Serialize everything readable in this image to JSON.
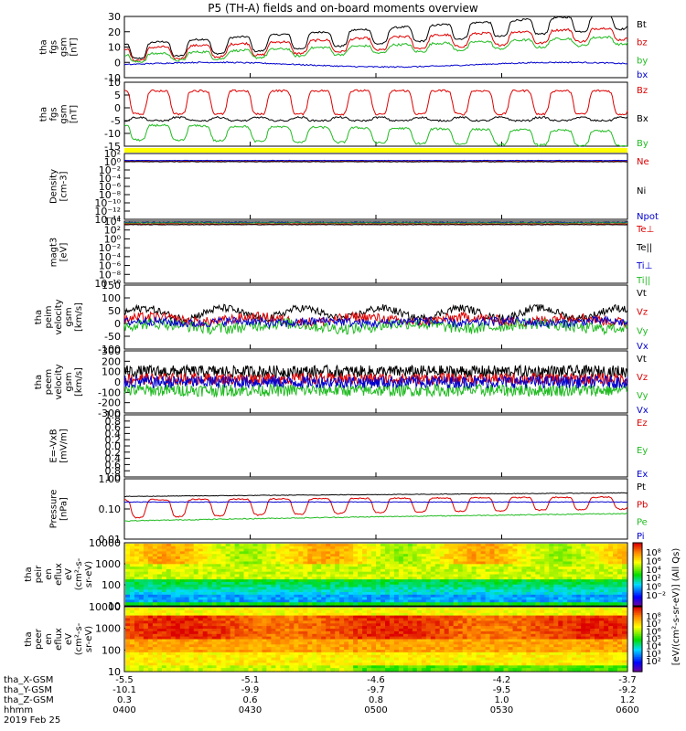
{
  "title": "P5 (TH-A) fields and on-board moments overview",
  "panels": [
    {
      "id": "fgs_gsm",
      "ylabel": [
        "tha",
        "fgs",
        "gsm",
        "[nT]"
      ],
      "yticks": [
        "30",
        "20",
        "10",
        "0",
        "-10"
      ],
      "ylim": [
        -10,
        30
      ],
      "scale": "linear",
      "legend": [
        {
          "text": "Bt",
          "color": "#000000"
        },
        {
          "text": "bz",
          "color": "#dd0000"
        },
        {
          "text": "by",
          "color": "#22bb22"
        },
        {
          "text": "bx",
          "color": "#0000cc"
        }
      ]
    },
    {
      "id": "fgs_dsl",
      "ylabel": [
        "tha",
        "fgs",
        "gsm",
        "[nT]"
      ],
      "yticks": [
        "10",
        "5",
        "0",
        "-5",
        "-10",
        "-15"
      ],
      "ylim": [
        -18,
        12
      ],
      "scale": "linear",
      "legend": [
        {
          "text": "Bz",
          "color": "#dd0000"
        },
        {
          "text": "Bx",
          "color": "#000000"
        },
        {
          "text": "By",
          "color": "#22bb22"
        }
      ]
    },
    {
      "id": "density",
      "ylabel": [
        "Density",
        "[cm-3]"
      ],
      "yticks": [
        "10²",
        "10⁰",
        "10⁻²",
        "10⁻⁴",
        "10⁻⁶",
        "10⁻⁸",
        "10⁻¹⁰",
        "10⁻¹²",
        "10⁻¹⁴"
      ],
      "ylim": [
        -14,
        2
      ],
      "scale": "log",
      "legend": [
        {
          "text": "Ne",
          "color": "#dd0000"
        },
        {
          "text": "Ni",
          "color": "#000000"
        },
        {
          "text": "Npot",
          "color": "#0000cc"
        }
      ]
    },
    {
      "id": "temp",
      "ylabel": [
        "magt3",
        "[eV]"
      ],
      "yticks": [
        "10⁴",
        "10²",
        "10⁰",
        "10⁻²",
        "10⁻⁴",
        "10⁻⁶",
        "10⁻⁸",
        "10⁻¹⁰"
      ],
      "ylim": [
        -10,
        4
      ],
      "scale": "log",
      "legend": [
        {
          "text": "Te⊥",
          "color": "#dd0000"
        },
        {
          "text": "Te||",
          "color": "#000000"
        },
        {
          "text": "Ti⊥",
          "color": "#0000cc"
        },
        {
          "text": "Ti||",
          "color": "#22bb22"
        }
      ]
    },
    {
      "id": "vi",
      "ylabel": [
        "tha",
        "peim",
        "velocity",
        "gsm",
        "[km/s]"
      ],
      "yticks": [
        "150",
        "100",
        "50",
        "0",
        "-50",
        "-100"
      ],
      "ylim": [
        -100,
        150
      ],
      "scale": "linear",
      "legend": [
        {
          "text": "Vt",
          "color": "#000000"
        },
        {
          "text": "Vz",
          "color": "#dd0000"
        },
        {
          "text": "Vy",
          "color": "#22bb22"
        },
        {
          "text": "Vx",
          "color": "#0000cc"
        }
      ]
    },
    {
      "id": "ve",
      "ylabel": [
        "tha",
        "peem",
        "velocity",
        "gsm",
        "[km/s]"
      ],
      "yticks": [
        "300",
        "200",
        "100",
        "0",
        "-100",
        "-200",
        "-300"
      ],
      "ylim": [
        -300,
        300
      ],
      "scale": "linear",
      "legend": [
        {
          "text": "Vt",
          "color": "#000000"
        },
        {
          "text": "Vz",
          "color": "#dd0000"
        },
        {
          "text": "Vy",
          "color": "#22bb22"
        },
        {
          "text": "Vx",
          "color": "#0000cc"
        }
      ]
    },
    {
      "id": "efield",
      "ylabel": [
        "E=-VxB",
        "[mV/m]"
      ],
      "yticks": [
        "1.0",
        "0.8",
        "0.6",
        "0.4",
        "0.2",
        "0.0",
        "0.2",
        "0.4",
        "0.6",
        "0.8",
        "1.0"
      ],
      "ylim": [
        -1,
        1
      ],
      "scale": "linear",
      "legend": [
        {
          "text": "Ez",
          "color": "#dd0000"
        },
        {
          "text": "Ey",
          "color": "#22bb22"
        },
        {
          "text": "Ex",
          "color": "#0000cc"
        }
      ]
    },
    {
      "id": "pressure",
      "ylabel": [
        "Pressure",
        "[nPa]"
      ],
      "yticks": [
        "1.00",
        "0.10",
        "0.01"
      ],
      "ylim": [
        -2,
        0
      ],
      "scale": "log",
      "legend": [
        {
          "text": "Pt",
          "color": "#000000"
        },
        {
          "text": "Pb",
          "color": "#dd0000"
        },
        {
          "text": "Pe",
          "color": "#22bb22"
        },
        {
          "text": "Pi",
          "color": "#0000cc"
        }
      ]
    },
    {
      "id": "peir",
      "ylabel": [
        "tha",
        "peir",
        "en",
        "eflux",
        "eV",
        "(cm²-s-",
        "sr-eV)"
      ],
      "yticks": [
        "10000",
        "1000",
        "100",
        "10"
      ],
      "scale": "log"
    },
    {
      "id": "peer",
      "ylabel": [
        "tha",
        "peer",
        "en",
        "eflux",
        "eV",
        "(cm²-s-",
        "sr-eV)"
      ],
      "yticks": [
        "10000",
        "1000",
        "100",
        "10"
      ],
      "scale": "log"
    }
  ],
  "colorbar": {
    "title": "[eV/(cm²-s-sr-eV)] (All Qs)",
    "ticks_upper": [
      "10⁸",
      "10⁶",
      "10⁴",
      "10²",
      "10⁰",
      "10⁻²"
    ],
    "ticks_lower": [
      "10⁸",
      "10⁷",
      "10⁶",
      "10⁵",
      "10⁴",
      "10³",
      "10²"
    ]
  },
  "xaxis": {
    "rows": [
      {
        "label": "tha_X-GSM",
        "values": [
          "-5.5",
          "-5.1",
          "-4.6",
          "-4.2",
          "-3.7"
        ]
      },
      {
        "label": "tha_Y-GSM",
        "values": [
          "-10.1",
          "-9.9",
          "-9.7",
          "-9.5",
          "-9.2"
        ]
      },
      {
        "label": "tha_Z-GSM",
        "values": [
          "0.3",
          "0.6",
          "0.8",
          "1.0",
          "1.2"
        ]
      },
      {
        "label": "hhmm",
        "values": [
          "0400",
          "0430",
          "0500",
          "0530",
          "0600"
        ]
      }
    ],
    "date": "2019 Feb 25"
  },
  "chart_data": {
    "type": "line",
    "title": "P5 (TH-A) fields and on-board moments overview",
    "x_ticks": [
      "0400",
      "0430",
      "0500",
      "0530",
      "0600"
    ],
    "series_approx": {
      "fgs_gsm": {
        "Bt": [
          8,
          12,
          10,
          22,
          28,
          30,
          24,
          20,
          22,
          20,
          28
        ],
        "bz": [
          5,
          8,
          6,
          18,
          20,
          20,
          16,
          14,
          16,
          15,
          23
        ],
        "by": [
          3,
          5,
          3,
          12,
          16,
          16,
          14,
          10,
          14,
          15,
          17
        ],
        "bx": [
          -2,
          -2,
          -1,
          -1,
          0,
          -1,
          -1,
          0,
          1,
          0,
          0
        ]
      },
      "fgs_dsl": {
        "Bz": [
          -2,
          0,
          5,
          7,
          8,
          -2,
          5,
          3,
          5,
          2,
          -2
        ],
        "Bx": [
          -5,
          -4,
          -3,
          -5,
          -5,
          -6,
          -5,
          -5,
          -5,
          -6,
          -5
        ],
        "By": [
          -10,
          -12,
          -13,
          -15,
          -15,
          -16,
          -15,
          -15,
          -15,
          -16,
          -14
        ]
      },
      "pressure": {
        "Pt": [
          0.25,
          0.25,
          0.3,
          0.32,
          0.3,
          0.3,
          0.32,
          0.33,
          0.35,
          0.38,
          0.33
        ],
        "Pb": [
          0.1,
          0.12,
          0.15,
          0.15,
          0.15,
          0.18,
          0.15,
          0.18,
          0.2,
          0.25,
          0.15
        ],
        "Pe": [
          0.04,
          0.05,
          0.05,
          0.06,
          0.06,
          0.06,
          0.07,
          0.07,
          0.08,
          0.08,
          0.06
        ],
        "Pi": [
          0.18,
          0.17,
          0.17,
          0.18,
          0.18,
          0.18,
          0.17,
          0.17,
          0.16,
          0.17,
          0.17
        ]
      }
    }
  }
}
